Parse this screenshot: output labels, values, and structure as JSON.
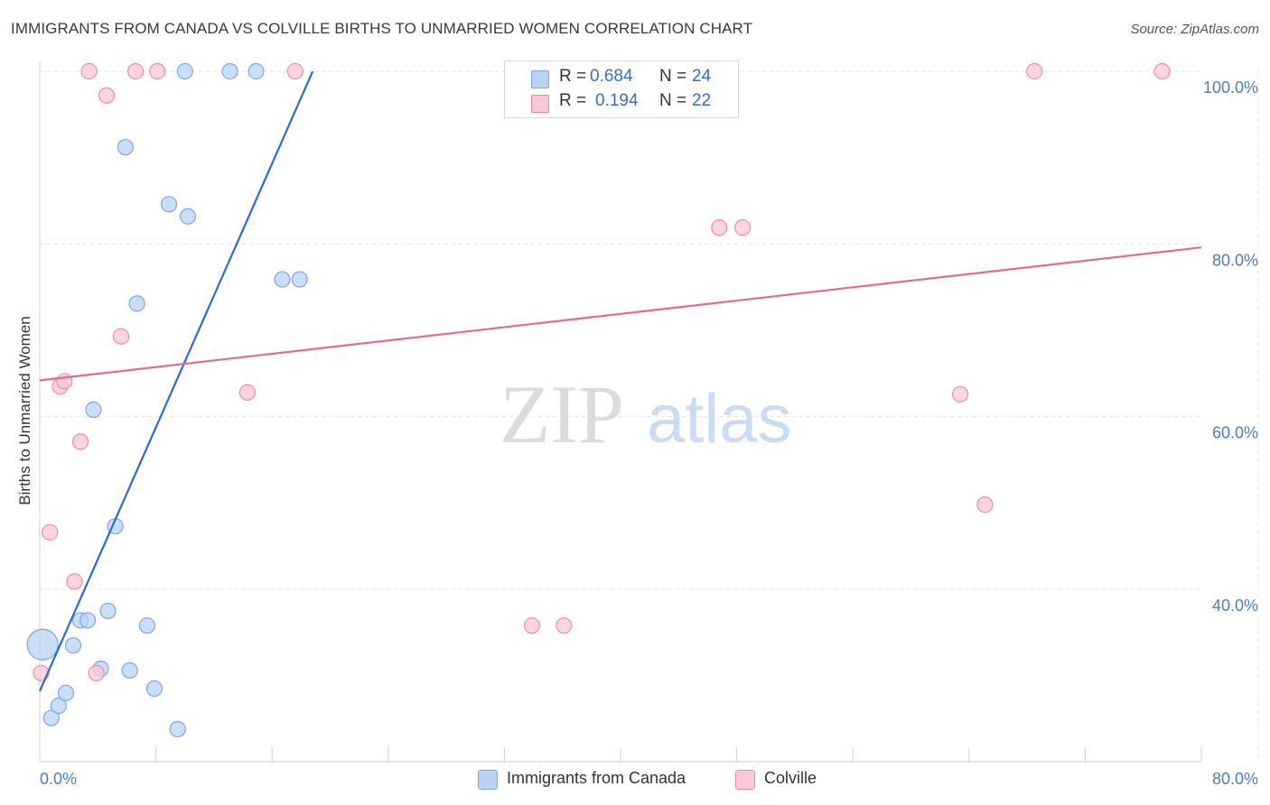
{
  "title": "IMMIGRANTS FROM CANADA VS COLVILLE BIRTHS TO UNMARRIED WOMEN CORRELATION CHART",
  "source": "Source: ZipAtlas.com",
  "watermark": {
    "zip": "ZIP",
    "atlas": "atlas"
  },
  "colors": {
    "blue_fill": "#b9d3f5",
    "blue_stroke": "#7aa8e0",
    "blue_line": "#2a6ccc",
    "pink_fill": "#fac8d6",
    "pink_stroke": "#f08aa8",
    "pink_line": "#e26a94",
    "tick_text": "#4a7cc4",
    "grid": "#e3e3e3"
  },
  "stats": {
    "rows": [
      {
        "r_label": "R =",
        "r_value": "0.684",
        "n_label": "N =",
        "n_value": "24"
      },
      {
        "r_label": "R =",
        "r_value": "0.194",
        "n_label": "N =",
        "n_value": "22"
      }
    ]
  },
  "legend": {
    "series1": "Immigrants from Canada",
    "series2": "Colville"
  },
  "chart_data": {
    "type": "scatter",
    "title": "IMMIGRANTS FROM CANADA VS COLVILLE BIRTHS TO UNMARRIED WOMEN CORRELATION CHART",
    "xlabel": "",
    "ylabel": "Births to Unmarried Women",
    "xlim": [
      0,
      80
    ],
    "ylim": [
      20,
      102
    ],
    "x_tick_labels": [
      "0.0%",
      "80.0%"
    ],
    "y_ticks": [
      40,
      60,
      80,
      100
    ],
    "y_tick_labels": [
      "40.0%",
      "60.0%",
      "80.0%",
      "100.0%"
    ],
    "grid": true,
    "series": [
      {
        "name": "Immigrants from Canada",
        "r": 0.684,
        "n": 24,
        "points": [
          {
            "x": 0.2,
            "y": 33.6,
            "size": "large"
          },
          {
            "x": 0.8,
            "y": 25.1
          },
          {
            "x": 1.3,
            "y": 26.5
          },
          {
            "x": 1.8,
            "y": 28.0
          },
          {
            "x": 2.3,
            "y": 33.5
          },
          {
            "x": 2.8,
            "y": 36.4
          },
          {
            "x": 3.3,
            "y": 36.4
          },
          {
            "x": 3.7,
            "y": 60.8
          },
          {
            "x": 4.2,
            "y": 30.8
          },
          {
            "x": 4.7,
            "y": 37.5
          },
          {
            "x": 5.2,
            "y": 47.3
          },
          {
            "x": 5.9,
            "y": 91.2
          },
          {
            "x": 6.2,
            "y": 30.6
          },
          {
            "x": 6.7,
            "y": 73.1
          },
          {
            "x": 7.4,
            "y": 35.8
          },
          {
            "x": 7.9,
            "y": 28.5
          },
          {
            "x": 8.9,
            "y": 84.6
          },
          {
            "x": 9.5,
            "y": 23.8
          },
          {
            "x": 10.0,
            "y": 100.0
          },
          {
            "x": 10.2,
            "y": 83.2
          },
          {
            "x": 13.1,
            "y": 100.0
          },
          {
            "x": 14.9,
            "y": 100.0
          },
          {
            "x": 16.7,
            "y": 75.9
          },
          {
            "x": 17.9,
            "y": 75.9
          }
        ],
        "trend": {
          "x": [
            0.0,
            18.8
          ],
          "y": [
            28.2,
            100.0
          ]
        }
      },
      {
        "name": "Colville",
        "r": 0.194,
        "n": 22,
        "points": [
          {
            "x": 0.1,
            "y": 30.3
          },
          {
            "x": 0.7,
            "y": 46.6
          },
          {
            "x": 1.4,
            "y": 63.5
          },
          {
            "x": 1.7,
            "y": 64.1
          },
          {
            "x": 2.4,
            "y": 40.9
          },
          {
            "x": 2.8,
            "y": 57.1
          },
          {
            "x": 3.4,
            "y": 100.0
          },
          {
            "x": 3.9,
            "y": 30.3
          },
          {
            "x": 4.6,
            "y": 97.2
          },
          {
            "x": 5.6,
            "y": 69.3
          },
          {
            "x": 6.6,
            "y": 100.0
          },
          {
            "x": 8.1,
            "y": 100.0
          },
          {
            "x": 14.3,
            "y": 62.8
          },
          {
            "x": 17.6,
            "y": 100.0
          },
          {
            "x": 33.9,
            "y": 35.8
          },
          {
            "x": 36.1,
            "y": 35.8
          },
          {
            "x": 46.8,
            "y": 81.9
          },
          {
            "x": 48.4,
            "y": 81.9
          },
          {
            "x": 63.4,
            "y": 62.6
          },
          {
            "x": 65.1,
            "y": 49.8
          },
          {
            "x": 68.5,
            "y": 100.0
          },
          {
            "x": 77.3,
            "y": 100.0
          }
        ],
        "trend": {
          "x": [
            0.0,
            80.0
          ],
          "y": [
            64.2,
            79.6
          ]
        }
      }
    ]
  }
}
